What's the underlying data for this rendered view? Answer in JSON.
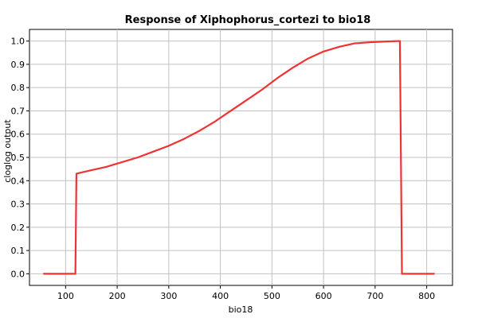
{
  "chart_data": {
    "type": "line",
    "title": "Response of Xiphophorus_cortezi to bio18",
    "xlabel": "bio18",
    "ylabel": "cloglog output",
    "xlim": [
      30,
      850
    ],
    "ylim": [
      -0.05,
      1.05
    ],
    "x_ticks": [
      100,
      200,
      300,
      400,
      500,
      600,
      700,
      800
    ],
    "y_ticks": [
      0.0,
      0.1,
      0.2,
      0.3,
      0.4,
      0.5,
      0.6,
      0.7,
      0.8,
      0.9,
      1.0
    ],
    "x_tick_labels": [
      "100",
      "200",
      "300",
      "400",
      "500",
      "600",
      "700",
      "800"
    ],
    "y_tick_labels": [
      "0.0",
      "0.1",
      "0.2",
      "0.3",
      "0.4",
      "0.5",
      "0.6",
      "0.7",
      "0.8",
      "0.9",
      "1.0"
    ],
    "grid": true,
    "series": [
      {
        "color": "#ee3333",
        "x": [
          58,
          119,
          121,
          150,
          180,
          210,
          240,
          270,
          300,
          330,
          360,
          390,
          420,
          450,
          480,
          510,
          540,
          570,
          600,
          630,
          660,
          690,
          720,
          745,
          748,
          752,
          814
        ],
        "y": [
          0.0,
          0.0,
          0.43,
          0.445,
          0.46,
          0.48,
          0.5,
          0.525,
          0.55,
          0.58,
          0.615,
          0.655,
          0.7,
          0.745,
          0.79,
          0.84,
          0.885,
          0.925,
          0.955,
          0.975,
          0.99,
          0.995,
          0.998,
          1.0,
          1.0,
          0.0,
          0.0
        ]
      }
    ]
  }
}
